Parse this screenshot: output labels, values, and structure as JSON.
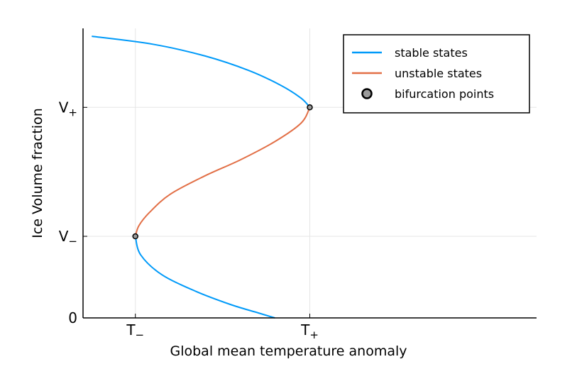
{
  "chart_data": {
    "type": "line",
    "xlabel": "Global mean temperature anomaly",
    "ylabel": "Ice Volume fraction",
    "xlim": [
      -0.3,
      2.3
    ],
    "ylim": [
      0,
      1.1
    ],
    "grid": true,
    "legend_position": "top-right",
    "x_ticks": [
      {
        "value": 0,
        "label": "T",
        "sub": "−"
      },
      {
        "value": 1,
        "label": "T",
        "sub": "+"
      }
    ],
    "y_ticks": [
      {
        "value": 0,
        "label": "0",
        "sub": ""
      },
      {
        "value": 0.31,
        "label": "V",
        "sub": "−"
      },
      {
        "value": 0.8,
        "label": "V",
        "sub": "+"
      }
    ],
    "series": [
      {
        "name": "stable states",
        "color": "#009af9",
        "x": [
          -0.25,
          0.1,
          0.4,
          0.65,
          0.83,
          0.95,
          1.0
        ],
        "y": [
          1.07,
          1.04,
          0.995,
          0.94,
          0.885,
          0.835,
          0.8
        ]
      },
      {
        "name": "unstable states",
        "color": "#e26f46",
        "x": [
          1.0,
          0.95,
          0.8,
          0.6,
          0.4,
          0.2,
          0.08,
          0.02,
          0.0
        ],
        "y": [
          0.8,
          0.74,
          0.67,
          0.6,
          0.54,
          0.47,
          0.4,
          0.35,
          0.31
        ]
      },
      {
        "name": "stable states",
        "color": "#009af9",
        "x": [
          0.0,
          0.03,
          0.15,
          0.35,
          0.55,
          0.7,
          0.8
        ],
        "y": [
          0.31,
          0.24,
          0.165,
          0.1,
          0.05,
          0.02,
          0.0
        ]
      }
    ],
    "points": {
      "name": "bifurcation points",
      "color": "#9b9b9b",
      "x": [
        0,
        1
      ],
      "y": [
        0.31,
        0.8
      ]
    },
    "legend": [
      {
        "label": "stable states",
        "kind": "line",
        "color": "#009af9"
      },
      {
        "label": "unstable states",
        "kind": "line",
        "color": "#e26f46"
      },
      {
        "label": "bifurcation points",
        "kind": "marker",
        "color": "#9b9b9b"
      }
    ]
  }
}
